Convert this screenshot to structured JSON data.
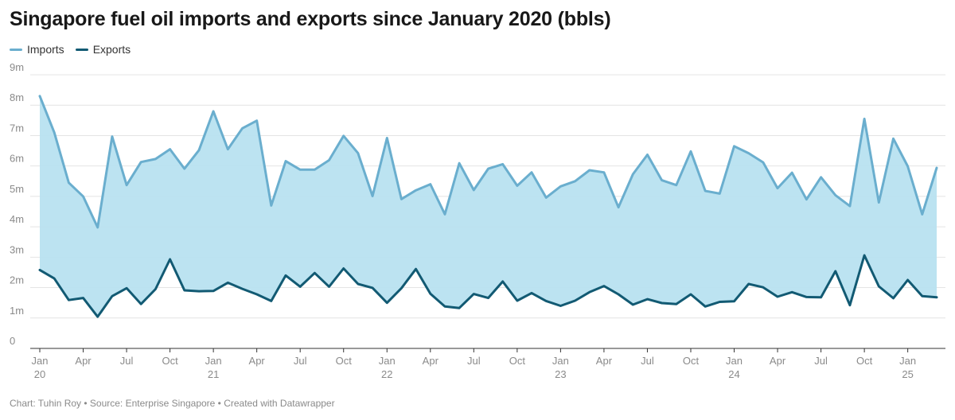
{
  "chart_data": {
    "type": "area",
    "title": "Singapore fuel oil imports and exports since January 2020 (bbls)",
    "footer": "Chart: Tuhin Roy • Source: Enterprise Singapore • Created with Datawrapper",
    "ylim": [
      0,
      9000000
    ],
    "y_ticks": [
      {
        "value": 0,
        "label": "0"
      },
      {
        "value": 1000000,
        "label": "1m"
      },
      {
        "value": 2000000,
        "label": "2m"
      },
      {
        "value": 3000000,
        "label": "3m"
      },
      {
        "value": 4000000,
        "label": "4m"
      },
      {
        "value": 5000000,
        "label": "5m"
      },
      {
        "value": 6000000,
        "label": "6m"
      },
      {
        "value": 7000000,
        "label": "7m"
      },
      {
        "value": 8000000,
        "label": "8m"
      },
      {
        "value": 9000000,
        "label": "9m"
      }
    ],
    "x_ticks": [
      {
        "index": 0,
        "label": "Jan",
        "year": "20"
      },
      {
        "index": 3,
        "label": "Apr"
      },
      {
        "index": 6,
        "label": "Jul"
      },
      {
        "index": 9,
        "label": "Oct"
      },
      {
        "index": 12,
        "label": "Jan",
        "year": "21"
      },
      {
        "index": 15,
        "label": "Apr"
      },
      {
        "index": 18,
        "label": "Jul"
      },
      {
        "index": 21,
        "label": "Oct"
      },
      {
        "index": 24,
        "label": "Jan",
        "year": "22"
      },
      {
        "index": 27,
        "label": "Apr"
      },
      {
        "index": 30,
        "label": "Jul"
      },
      {
        "index": 33,
        "label": "Oct"
      },
      {
        "index": 36,
        "label": "Jan",
        "year": "23"
      },
      {
        "index": 39,
        "label": "Apr"
      },
      {
        "index": 42,
        "label": "Jul"
      },
      {
        "index": 45,
        "label": "Oct"
      },
      {
        "index": 48,
        "label": "Jan",
        "year": "24"
      },
      {
        "index": 51,
        "label": "Apr"
      },
      {
        "index": 54,
        "label": "Jul"
      },
      {
        "index": 57,
        "label": "Oct"
      },
      {
        "index": 60,
        "label": "Jan",
        "year": "25"
      }
    ],
    "x": [
      "2020-01",
      "2020-02",
      "2020-03",
      "2020-04",
      "2020-05",
      "2020-06",
      "2020-07",
      "2020-08",
      "2020-09",
      "2020-10",
      "2020-11",
      "2020-12",
      "2021-01",
      "2021-02",
      "2021-03",
      "2021-04",
      "2021-05",
      "2021-06",
      "2021-07",
      "2021-08",
      "2021-09",
      "2021-10",
      "2021-11",
      "2021-12",
      "2022-01",
      "2022-02",
      "2022-03",
      "2022-04",
      "2022-05",
      "2022-06",
      "2022-07",
      "2022-08",
      "2022-09",
      "2022-10",
      "2022-11",
      "2022-12",
      "2023-01",
      "2023-02",
      "2023-03",
      "2023-04",
      "2023-05",
      "2023-06",
      "2023-07",
      "2023-08",
      "2023-09",
      "2023-10",
      "2023-11",
      "2023-12",
      "2024-01",
      "2024-02",
      "2024-03",
      "2024-04",
      "2024-05",
      "2024-06",
      "2024-07",
      "2024-08",
      "2024-09",
      "2024-10",
      "2024-11",
      "2024-12",
      "2025-01",
      "2025-02",
      "2025-03"
    ],
    "series": [
      {
        "name": "Imports",
        "color": "#6aaece",
        "values": [
          8300000,
          7100000,
          5450000,
          5000000,
          3980000,
          6970000,
          5370000,
          6130000,
          6230000,
          6550000,
          5910000,
          6520000,
          7800000,
          6550000,
          7240000,
          7490000,
          4700000,
          6160000,
          5880000,
          5880000,
          6190000,
          6990000,
          6420000,
          5010000,
          6920000,
          4910000,
          5200000,
          5400000,
          4410000,
          6090000,
          5210000,
          5910000,
          6060000,
          5350000,
          5790000,
          4960000,
          5330000,
          5500000,
          5860000,
          5790000,
          4640000,
          5730000,
          6370000,
          5530000,
          5370000,
          6480000,
          5180000,
          5090000,
          6650000,
          6420000,
          6120000,
          5270000,
          5780000,
          4900000,
          5630000,
          5040000,
          4680000,
          7550000,
          4800000,
          6900000,
          5990000,
          4410000,
          5940000
        ]
      },
      {
        "name": "Exports",
        "color": "#125a73",
        "values": [
          2580000,
          2300000,
          1590000,
          1660000,
          1040000,
          1720000,
          1980000,
          1460000,
          1950000,
          2930000,
          1910000,
          1880000,
          1890000,
          2160000,
          1960000,
          1780000,
          1560000,
          2400000,
          2030000,
          2480000,
          2030000,
          2630000,
          2120000,
          1990000,
          1500000,
          1980000,
          2610000,
          1800000,
          1380000,
          1330000,
          1790000,
          1660000,
          2200000,
          1570000,
          1820000,
          1560000,
          1400000,
          1570000,
          1850000,
          2050000,
          1780000,
          1440000,
          1620000,
          1490000,
          1460000,
          1780000,
          1380000,
          1530000,
          1550000,
          2120000,
          2010000,
          1700000,
          1850000,
          1690000,
          1680000,
          2540000,
          1420000,
          3060000,
          2040000,
          1650000,
          2250000,
          1720000,
          1680000
        ]
      }
    ],
    "fill_color": "#b8e1f0",
    "grid": true,
    "legend": "top-left"
  }
}
